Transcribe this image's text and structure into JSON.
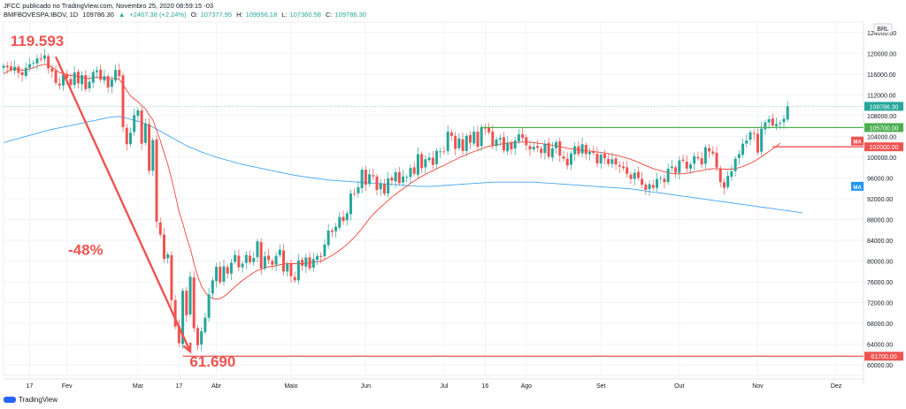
{
  "header": {
    "publisher": "JFCC publicado no TradingView.com, Novembro 25, 2020 08:59:15 -03",
    "symbol": "BMFBOVESPA:IBOV, 1D",
    "last": "109786.30",
    "arrow": "▲",
    "change": "+2407.38 (+2.24%)",
    "open_label": "O:",
    "open": "107377.95",
    "high_label": "H:",
    "high": "109956.18",
    "low_label": "L:",
    "low": "107360.58",
    "close_label": "C:",
    "close": "109786.30"
  },
  "footer": {
    "brand": "TradingView"
  },
  "colors": {
    "up": "#26a69a",
    "down": "#ef5350",
    "ma_fast": "#f44336",
    "ma_slow": "#42a5f5",
    "support": "#4caf50",
    "annotation": "#ef5350",
    "grid": "#f0f3fa"
  },
  "chart_data": {
    "type": "candlestick",
    "currency": "BRL",
    "ylim": [
      58000,
      126000
    ],
    "y_ticks": [
      60000,
      64000,
      68000,
      72000,
      76000,
      80000,
      84000,
      88000,
      92000,
      96000,
      100000,
      104000,
      108000,
      112000,
      116000,
      120000,
      124000
    ],
    "y_tick_labels": [
      "60000.00",
      "64000.00",
      "68000.00",
      "72000.00",
      "76000.00",
      "80000.00",
      "84000.00",
      "88000.00",
      "92000.00",
      "96000.00",
      "100000.00",
      "104000.00",
      "108000.00",
      "112000.00",
      "116000.00",
      "120000.00",
      "124000.00"
    ],
    "x_ticks": [
      {
        "label": "17",
        "bar": 7
      },
      {
        "label": "Fev",
        "bar": 17
      },
      {
        "label": "Mar",
        "bar": 36
      },
      {
        "label": "17",
        "bar": 47
      },
      {
        "label": "Abr",
        "bar": 57
      },
      {
        "label": "Maio",
        "bar": 77
      },
      {
        "label": "Jun",
        "bar": 97
      },
      {
        "label": "Jul",
        "bar": 118
      },
      {
        "label": "16",
        "bar": 129
      },
      {
        "label": "Ago",
        "bar": 140
      },
      {
        "label": "Set",
        "bar": 160
      },
      {
        "label": "Out",
        "bar": 181
      },
      {
        "label": "Nov",
        "bar": 202
      },
      {
        "label": "Dez",
        "bar": 223
      }
    ],
    "closes": [
      117600,
      117300,
      116800,
      117400,
      116200,
      115800,
      117200,
      117900,
      118200,
      119000,
      118800,
      119593,
      117100,
      116500,
      114300,
      113800,
      115900,
      115200,
      113900,
      116300,
      114200,
      115800,
      113100,
      114500,
      116400,
      116700,
      114900,
      115600,
      113400,
      114900,
      116800,
      115600,
      105800,
      102500,
      104700,
      108100,
      109000,
      102600,
      106500,
      97400,
      103300,
      87600,
      85100,
      80400,
      81300,
      72500,
      67400,
      64200,
      74300,
      69600,
      77000,
      67100,
      63800,
      66500,
      69100,
      73600,
      76300,
      78900,
      75900,
      79000,
      77600,
      79700,
      81200,
      78800,
      79500,
      81200,
      79800,
      80600,
      83800,
      78600,
      80900,
      80200,
      79300,
      81000,
      82200,
      78000,
      79400,
      77100,
      76300,
      80100,
      79100,
      80700,
      78600,
      80400,
      81000,
      80800,
      83200,
      85900,
      85600,
      86600,
      88500,
      87700,
      89200,
      93000,
      92900,
      94200,
      97600,
      94700,
      96700,
      96300,
      93700,
      95000,
      93000,
      95900,
      95500,
      97100,
      95000,
      96300,
      96200,
      97900,
      96800,
      100600,
      97900,
      99600,
      99900,
      98500,
      101200,
      101100,
      101000,
      104900,
      104100,
      101600,
      103600,
      101200,
      104100,
      102800,
      104900,
      102000,
      105800,
      105600,
      104800,
      102300,
      103400,
      103700,
      101300,
      102800,
      101500,
      103200,
      104400,
      103700,
      102300,
      101500,
      102000,
      101800,
      100800,
      102600,
      100100,
      101700,
      102900,
      100300,
      99700,
      98400,
      100700,
      102100,
      100600,
      102500,
      100600,
      101000,
      100800,
      98800,
      100500,
      99800,
      98700,
      99600,
      98600,
      98200,
      97900,
      96800,
      95800,
      97000,
      96000,
      94700,
      93700,
      94800,
      94100,
      95800,
      96000,
      95200,
      97800,
      98200,
      97000,
      99400,
      99300,
      97800,
      98600,
      100200,
      99800,
      98600,
      101900,
      101100,
      100700,
      98000,
      95200,
      94100,
      96400,
      97300,
      99700,
      100600,
      102600,
      103200,
      104800,
      104500,
      100900,
      105500,
      106700,
      107300,
      106100,
      106400,
      106600,
      107400,
      109786.3
    ],
    "ma_fast": [
      116000,
      116500,
      116800,
      117000,
      116900,
      116700,
      116800,
      117000,
      117200,
      117500,
      117700,
      117900,
      117700,
      117300,
      116800,
      116300,
      116100,
      115900,
      115700,
      115700,
      115500,
      115400,
      115200,
      115100,
      115300,
      115400,
      115300,
      115300,
      115100,
      115100,
      115200,
      115000,
      114000,
      112800,
      111800,
      111200,
      110700,
      109900,
      109300,
      108100,
      107200,
      105200,
      103200,
      100800,
      98600,
      95800,
      92800,
      89600,
      87300,
      84600,
      82500,
      79600,
      77200,
      75200,
      74000,
      73200,
      72800,
      72700,
      72800,
      73200,
      73700,
      74400,
      75100,
      75700,
      76300,
      76800,
      77300,
      77800,
      78200,
      78400,
      78700,
      78900,
      79000,
      79100,
      79300,
      79400,
      79500,
      79500,
      79500,
      79500,
      79500,
      79600,
      79700,
      79800,
      79900,
      80000,
      80300,
      80700,
      81100,
      81600,
      82100,
      82600,
      83200,
      83900,
      84600,
      85400,
      86300,
      87200,
      88200,
      89000,
      89700,
      90400,
      91000,
      91700,
      92300,
      92900,
      93400,
      93900,
      94400,
      95000,
      95400,
      95900,
      96300,
      96700,
      97100,
      97400,
      97800,
      98100,
      98400,
      98800,
      99200,
      99500,
      99900,
      100200,
      100500,
      100800,
      101100,
      101300,
      101600,
      101900,
      102100,
      102200,
      102400,
      102500,
      102600,
      102700,
      102800,
      102800,
      102900,
      102900,
      102900,
      102900,
      102800,
      102700,
      102600,
      102500,
      102400,
      102300,
      102200,
      102000,
      101900,
      101700,
      101600,
      101500,
      101400,
      101300,
      101200,
      101200,
      101100,
      101000,
      100900,
      100800,
      100700,
      100500,
      100400,
      100200,
      100000,
      99800,
      99600,
      99300,
      99000,
      98700,
      98400,
      98100,
      97800,
      97600,
      97400,
      97200,
      97000,
      96900,
      96800,
      96800,
      96800,
      96900,
      97000,
      97200,
      97300,
      97400,
      97600,
      97700,
      97800,
      97800,
      97800,
      97700,
      97700,
      97700,
      97800,
      98000,
      98200,
      98500,
      98800,
      99200,
      99600,
      100100,
      100600,
      101100,
      101600,
      102100,
      102700
    ],
    "ma_slow": [
      102800,
      103000,
      103200,
      103400,
      103600,
      103800,
      104000,
      104200,
      104400,
      104600,
      104800,
      105000,
      105200,
      105350,
      105500,
      105650,
      105800,
      105950,
      106100,
      106250,
      106400,
      106550,
      106700,
      106850,
      107000,
      107150,
      107300,
      107450,
      107600,
      107700,
      107800,
      107800,
      107700,
      107500,
      107300,
      107100,
      106900,
      106700,
      106400,
      106100,
      105800,
      105400,
      105000,
      104600,
      104200,
      103800,
      103400,
      103000,
      102600,
      102200,
      101900,
      101600,
      101300,
      101000,
      100750,
      100500,
      100250,
      100000,
      99800,
      99600,
      99400,
      99200,
      99000,
      98800,
      98600,
      98450,
      98300,
      98150,
      98000,
      97850,
      97700,
      97550,
      97400,
      97250,
      97100,
      96950,
      96800,
      96650,
      96500,
      96400,
      96300,
      96200,
      96100,
      96000,
      95900,
      95800,
      95700,
      95600,
      95550,
      95500,
      95450,
      95400,
      95350,
      95300,
      95250,
      95200,
      95150,
      95100,
      95050,
      95000,
      94950,
      94900,
      94850,
      94800,
      94750,
      94700,
      94650,
      94600,
      94550,
      94500,
      94450,
      94400,
      94400,
      94400,
      94400,
      94400,
      94450,
      94500,
      94550,
      94600,
      94650,
      94700,
      94750,
      94800,
      94850,
      94900,
      94950,
      95000,
      95050,
      95100,
      95150,
      95200,
      95200,
      95200,
      95200,
      95200,
      95200,
      95200,
      95200,
      95200,
      95200,
      95200,
      95200,
      95150,
      95100,
      95050,
      95000,
      94950,
      94900,
      94850,
      94800,
      94750,
      94700,
      94650,
      94600,
      94550,
      94500,
      94450,
      94400,
      94350,
      94300,
      94250,
      94200,
      94150,
      94100,
      94050,
      94000,
      93950,
      93900,
      93800,
      93700,
      93600,
      93500,
      93400,
      93300,
      93200,
      93100,
      93000,
      92900,
      92800,
      92700,
      92600,
      92500,
      92400,
      92300,
      92200,
      92100,
      92000,
      91900,
      91800,
      91700,
      91600,
      91500,
      91400,
      91300,
      91200,
      91100,
      91000,
      90900,
      90800,
      90700,
      90600,
      90500,
      90400,
      90300,
      90200,
      90100,
      90000,
      89900,
      89800,
      89700,
      89600,
      89500,
      89400,
      89300
    ],
    "levels": [
      {
        "price": 105700,
        "label": "105700.00",
        "color": "#4caf50",
        "from_bar": 128
      },
      {
        "price": 102000,
        "label": "102000.00",
        "color": "#ef5350",
        "from_bar": 206
      },
      {
        "price": 61700,
        "label": "61700.00",
        "color": "#ef5350",
        "from_bar": 48
      }
    ],
    "last_price": {
      "price": 109786.3,
      "label": "109786.30"
    },
    "ma_labels": [
      {
        "text": "MA",
        "price": 103100,
        "color": "#ef5350"
      },
      {
        "text": "MA",
        "price": 94400,
        "color": "#2196f3"
      }
    ],
    "annotations": [
      {
        "text": "119.593",
        "bar": 9,
        "price": 121400
      },
      {
        "text": "-48%",
        "bar": 22,
        "price": 81200
      },
      {
        "text": "61.690",
        "bar": 56,
        "price": 59700
      }
    ],
    "arrow": {
      "from_bar": 14,
      "from_price": 119300,
      "to_bar": 50,
      "to_price": 62600
    },
    "y_axis_unit": "BRL"
  }
}
